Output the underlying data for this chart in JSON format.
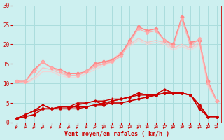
{
  "background_color": "#cdf0f0",
  "grid_color": "#aadddd",
  "xlabel": "Vent moyen/en rafales ( km/h )",
  "xlabel_color": "#cc0000",
  "tick_color": "#cc0000",
  "xlim": [
    -0.5,
    23.5
  ],
  "ylim": [
    0,
    30
  ],
  "yticks": [
    0,
    5,
    10,
    15,
    20,
    25,
    30
  ],
  "xticks": [
    0,
    1,
    2,
    3,
    4,
    5,
    6,
    7,
    8,
    9,
    10,
    11,
    12,
    13,
    14,
    15,
    16,
    17,
    18,
    19,
    20,
    21,
    22,
    23
  ],
  "series": [
    {
      "x": [
        0,
        1,
        2,
        3,
        4,
        5,
        6,
        7,
        8,
        9,
        10,
        11,
        12,
        13,
        14,
        15,
        16,
        17,
        18,
        19,
        20,
        21,
        22,
        23
      ],
      "y": [
        1.0,
        1.5,
        2.0,
        3.5,
        3.5,
        4.0,
        4.0,
        4.0,
        4.0,
        4.5,
        4.5,
        5.0,
        5.0,
        5.5,
        6.0,
        6.5,
        7.0,
        7.5,
        7.5,
        7.5,
        7.0,
        3.5,
        1.5,
        1.5
      ],
      "color": "#cc0000",
      "lw": 1.2,
      "marker": "D",
      "ms": 2.0,
      "alpha": 1.0,
      "zorder": 5
    },
    {
      "x": [
        0,
        1,
        2,
        3,
        4,
        5,
        6,
        7,
        8,
        9,
        10,
        11,
        12,
        13,
        14,
        15,
        16,
        17,
        18,
        19,
        20,
        21,
        22,
        23
      ],
      "y": [
        1.0,
        2.0,
        3.0,
        3.5,
        3.5,
        3.5,
        3.5,
        3.5,
        4.0,
        4.5,
        5.0,
        5.5,
        6.0,
        6.5,
        7.0,
        7.0,
        7.0,
        7.5,
        7.5,
        7.5,
        7.0,
        4.5,
        1.5,
        1.5
      ],
      "color": "#cc0000",
      "lw": 1.0,
      "marker": "o",
      "ms": 2.0,
      "alpha": 1.0,
      "zorder": 4
    },
    {
      "x": [
        0,
        1,
        2,
        3,
        4,
        5,
        6,
        7,
        8,
        9,
        10,
        11,
        12,
        13,
        14,
        15,
        16,
        17,
        18,
        19,
        20,
        21,
        22,
        23
      ],
      "y": [
        1.0,
        2.0,
        3.0,
        4.5,
        3.5,
        3.5,
        3.5,
        4.5,
        5.0,
        5.5,
        4.5,
        5.5,
        6.0,
        6.5,
        7.5,
        7.0,
        7.0,
        8.5,
        7.5,
        7.5,
        7.0,
        4.5,
        1.5,
        1.5
      ],
      "color": "#cc0000",
      "lw": 1.0,
      "marker": "s",
      "ms": 2.0,
      "alpha": 1.0,
      "zorder": 3
    },
    {
      "x": [
        0,
        1,
        2,
        3,
        4,
        5,
        6,
        7,
        8,
        9,
        10,
        11,
        12,
        13,
        14,
        15,
        16,
        17,
        18,
        19,
        20,
        21,
        22,
        23
      ],
      "y": [
        1.0,
        2.0,
        3.0,
        4.5,
        3.5,
        4.0,
        4.0,
        5.0,
        5.0,
        5.5,
        5.5,
        6.0,
        6.0,
        6.5,
        7.5,
        7.0,
        7.0,
        8.5,
        7.5,
        7.5,
        7.0,
        4.5,
        1.5,
        1.5
      ],
      "color": "#cc0000",
      "lw": 1.0,
      "marker": "+",
      "ms": 3.0,
      "alpha": 1.0,
      "zorder": 3
    },
    {
      "x": [
        0,
        1,
        2,
        3,
        4,
        5,
        6,
        7,
        8,
        9,
        10,
        11,
        12,
        13,
        14,
        15,
        16,
        17,
        18,
        19,
        20,
        21,
        22,
        23
      ],
      "y": [
        10.5,
        10.5,
        13.5,
        15.5,
        14.0,
        13.5,
        12.5,
        12.5,
        13.0,
        15.0,
        15.5,
        16.0,
        17.5,
        21.0,
        24.5,
        23.5,
        24.0,
        21.0,
        20.0,
        27.0,
        20.5,
        21.0,
        10.5,
        5.5
      ],
      "color": "#ff8888",
      "lw": 1.2,
      "marker": "D",
      "ms": 2.5,
      "alpha": 1.0,
      "zorder": 2
    },
    {
      "x": [
        0,
        1,
        2,
        3,
        4,
        5,
        6,
        7,
        8,
        9,
        10,
        11,
        12,
        13,
        14,
        15,
        16,
        17,
        18,
        19,
        20,
        21,
        22,
        23
      ],
      "y": [
        10.5,
        10.5,
        13.0,
        15.5,
        14.0,
        13.0,
        12.0,
        12.0,
        13.0,
        14.5,
        15.0,
        15.5,
        17.0,
        20.5,
        24.0,
        23.0,
        23.5,
        21.0,
        19.5,
        26.5,
        19.5,
        21.5,
        10.0,
        5.5
      ],
      "color": "#ffaaaa",
      "lw": 1.0,
      "marker": "o",
      "ms": 2.5,
      "alpha": 0.9,
      "zorder": 2
    },
    {
      "x": [
        0,
        1,
        2,
        3,
        4,
        5,
        6,
        7,
        8,
        9,
        10,
        11,
        12,
        13,
        14,
        15,
        16,
        17,
        18,
        19,
        20,
        21,
        22,
        23
      ],
      "y": [
        10.5,
        10.0,
        11.5,
        14.0,
        13.5,
        12.5,
        12.0,
        12.0,
        13.0,
        14.0,
        15.0,
        16.0,
        18.0,
        20.0,
        21.5,
        20.5,
        21.0,
        20.5,
        19.0,
        20.0,
        19.0,
        20.5,
        9.5,
        5.5
      ],
      "color": "#ffbbbb",
      "lw": 1.0,
      "marker": "None",
      "ms": 0,
      "alpha": 0.8,
      "zorder": 1
    },
    {
      "x": [
        0,
        1,
        2,
        3,
        4,
        5,
        6,
        7,
        8,
        9,
        10,
        11,
        12,
        13,
        14,
        15,
        16,
        17,
        18,
        19,
        20,
        21,
        22,
        23
      ],
      "y": [
        10.5,
        10.0,
        11.0,
        13.0,
        13.0,
        12.0,
        11.5,
        11.5,
        12.5,
        13.5,
        14.5,
        15.5,
        17.5,
        19.5,
        21.0,
        20.0,
        20.5,
        20.0,
        18.5,
        19.5,
        18.5,
        20.0,
        9.0,
        5.5
      ],
      "color": "#ffcccc",
      "lw": 1.0,
      "marker": "None",
      "ms": 0,
      "alpha": 0.7,
      "zorder": 1
    }
  ],
  "arrows_x": [
    0,
    1,
    2,
    3,
    4,
    5,
    6,
    7,
    8,
    9,
    10,
    11,
    12,
    13,
    14,
    15,
    16,
    17,
    18,
    19,
    20,
    21,
    22,
    23
  ],
  "arrow_color": "#cc0000"
}
